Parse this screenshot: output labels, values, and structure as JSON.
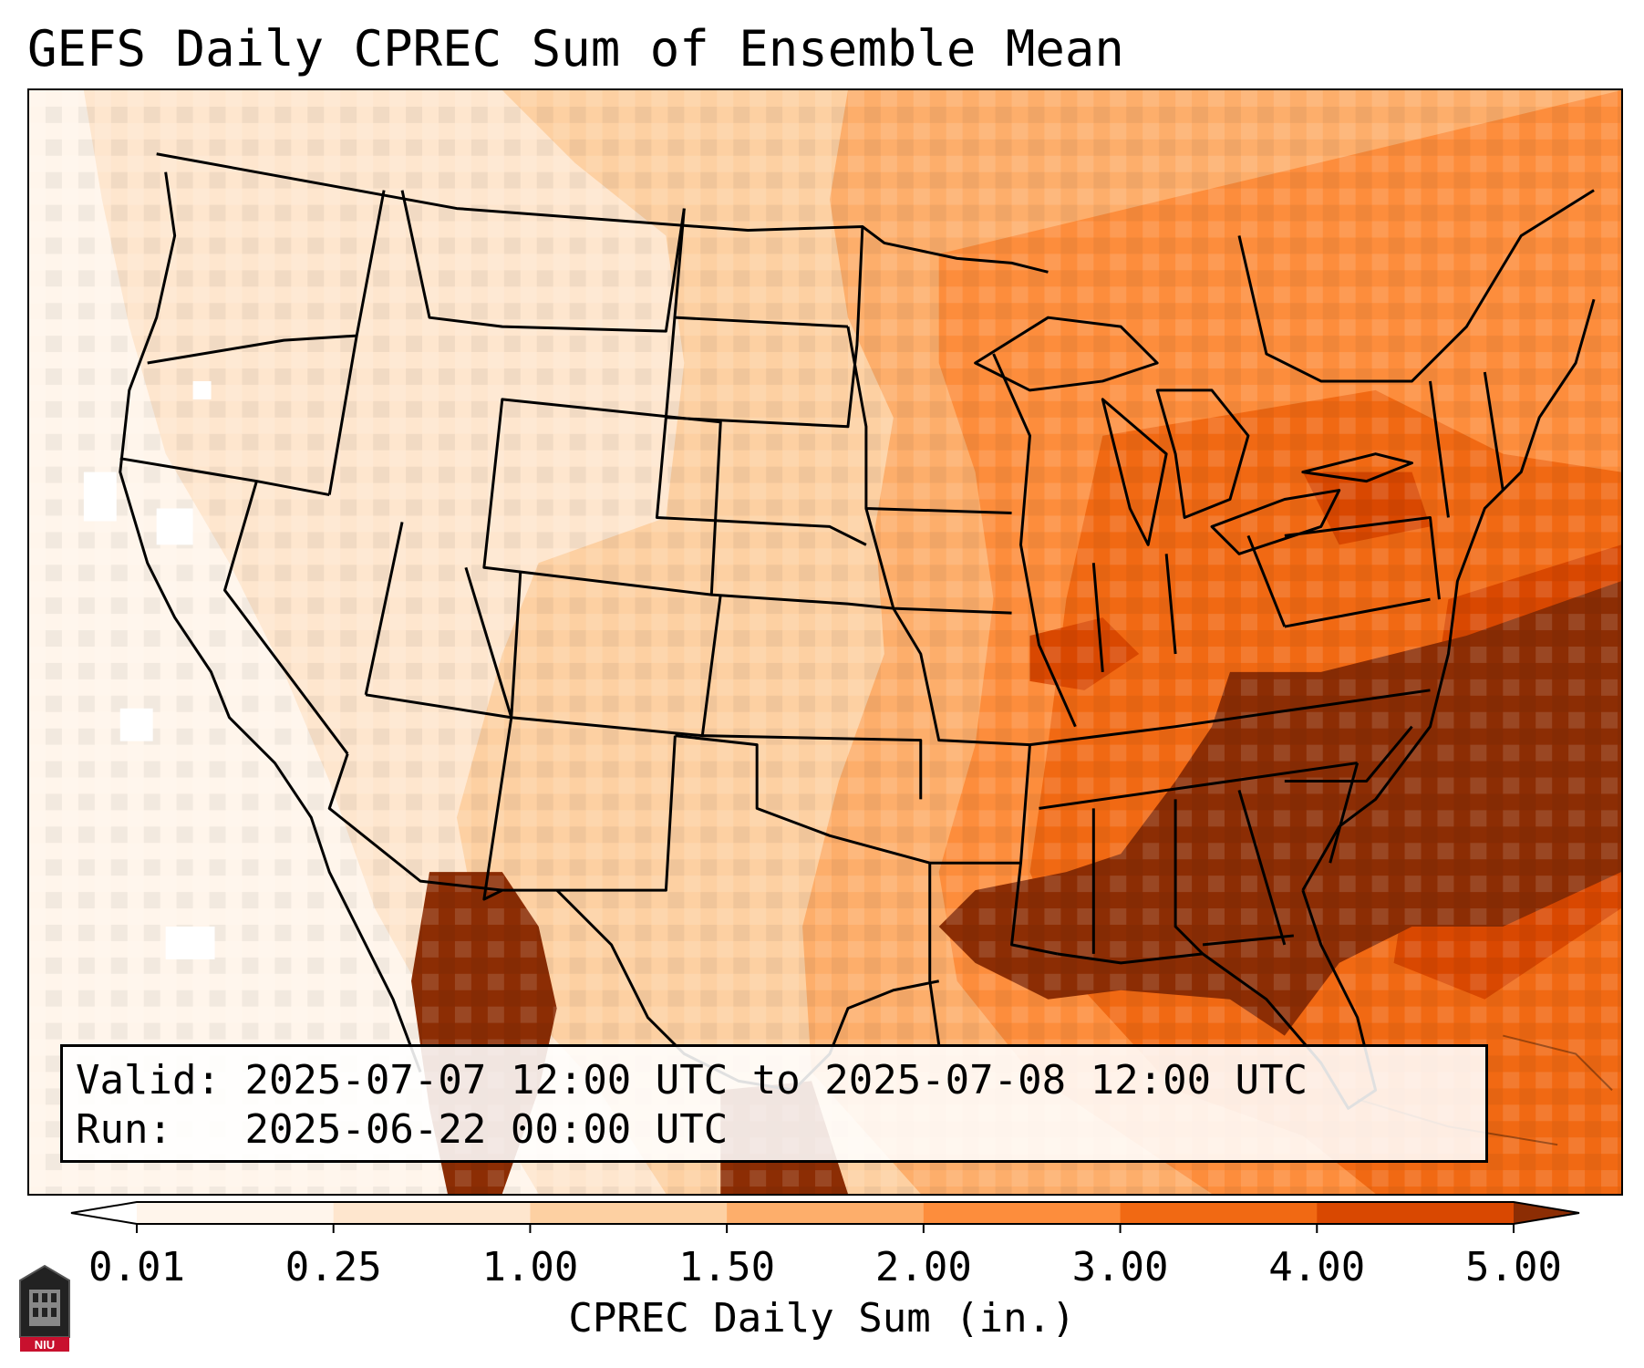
{
  "title": "GEFS Daily CPREC Sum of Ensemble Mean",
  "info": {
    "valid_label": "Valid:",
    "valid_value": "2025-07-07 12:00 UTC to 2025-07-08 12:00 UTC",
    "run_label": "Run:",
    "run_value": "2025-06-22 00:00 UTC"
  },
  "colorbar": {
    "label": "CPREC Daily Sum (in.)",
    "ticks": [
      "0.01",
      "0.25",
      "1.00",
      "1.50",
      "2.00",
      "3.00",
      "4.00",
      "5.00"
    ],
    "colors": [
      "#fff5eb",
      "#fee6ce",
      "#fdd0a2",
      "#fdae6b",
      "#fd8d3c",
      "#f16913",
      "#d94801",
      "#8c2d04"
    ],
    "extend": "both"
  },
  "logo": {
    "text": "NIU",
    "icon": "niu-tower-logo"
  },
  "map": {
    "region": "Contiguous United States",
    "boundaries": [
      "state-borders",
      "coastlines",
      "great-lakes"
    ]
  }
}
